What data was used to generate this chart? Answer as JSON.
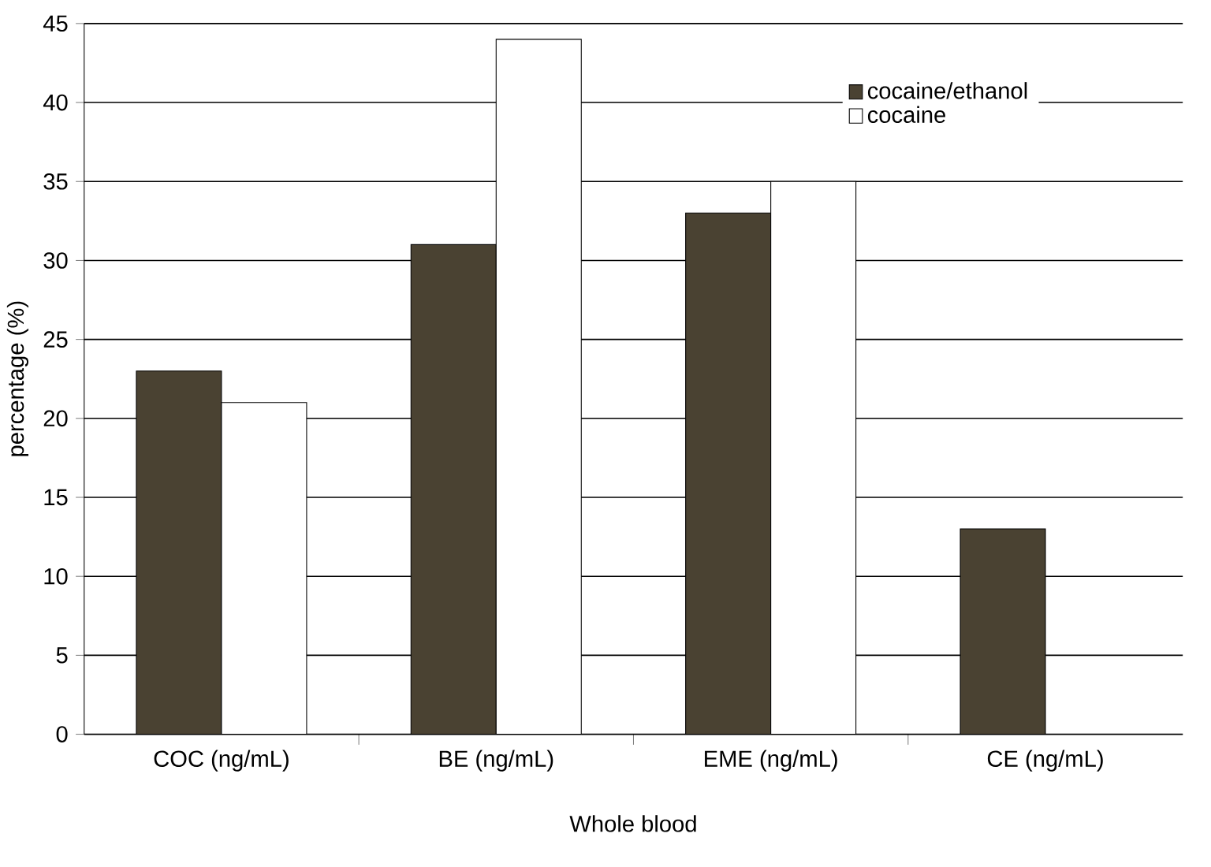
{
  "chart_data": {
    "type": "bar",
    "xlabel": "Whole blood",
    "ylabel": "percentage (%)",
    "categories": [
      "COC (ng/mL)",
      "BE (ng/mL)",
      "EME (ng/mL)",
      "CE (ng/mL)"
    ],
    "series": [
      {
        "name": "cocaine/ethanol",
        "color": "#4a4232",
        "values": [
          23,
          31,
          33,
          13
        ]
      },
      {
        "name": "cocaine",
        "color": "#ffffff",
        "values": [
          21,
          44,
          35,
          null
        ]
      }
    ],
    "ylim": [
      0,
      45
    ],
    "yticks": [
      0,
      5,
      10,
      15,
      20,
      25,
      30,
      35,
      40,
      45
    ],
    "grid": "y",
    "legend": "top right"
  }
}
